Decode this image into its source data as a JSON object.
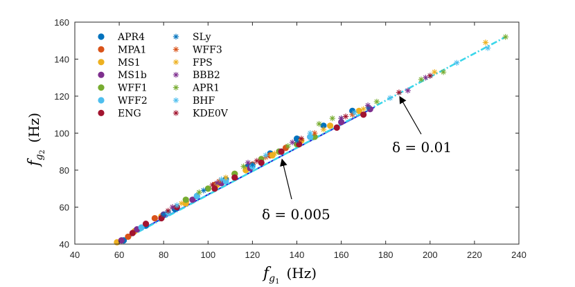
{
  "chart_data": {
    "type": "scatter",
    "title": "",
    "xlabel": {
      "base": "f",
      "sub1": "g",
      "sub2": "1",
      "unit": "(Hz)"
    },
    "ylabel": {
      "base": "f",
      "sub1": "g",
      "sub2": "2",
      "unit": "(Hz)"
    },
    "xlim": [
      40,
      240
    ],
    "ylim": [
      40,
      160
    ],
    "xticks": [
      "40",
      "60",
      "80",
      "100",
      "120",
      "140",
      "160",
      "180",
      "200",
      "220",
      "240"
    ],
    "yticks": [
      "40",
      "60",
      "80",
      "100",
      "120",
      "140",
      "160"
    ],
    "grid": false,
    "legend_position": "top-left",
    "series": [
      {
        "name": "APR4",
        "marker": "dot",
        "color": "#0072BD",
        "x": [
          62,
          72,
          85,
          95,
          108,
          118,
          128,
          140,
          152,
          165
        ],
        "y": [
          42,
          50,
          59,
          66,
          75,
          82,
          89,
          97,
          104,
          112
        ]
      },
      {
        "name": "MPA1",
        "marker": "dot",
        "color": "#D95319",
        "x": [
          64,
          76,
          90,
          103,
          112,
          120,
          128,
          135
        ],
        "y": [
          44,
          54,
          63,
          72,
          78,
          83,
          88,
          92
        ]
      },
      {
        "name": "MS1",
        "marker": "dot",
        "color": "#EDB120",
        "x": [
          59,
          67,
          79,
          90,
          104,
          117,
          129,
          142,
          155,
          168
        ],
        "y": [
          41,
          47,
          55,
          62,
          72,
          80,
          88,
          96,
          104,
          112
        ]
      },
      {
        "name": "MS1b",
        "marker": "dot",
        "color": "#7E2F8E",
        "x": [
          61,
          68,
          80,
          93,
          106,
          119,
          132,
          146,
          160,
          173
        ],
        "y": [
          42,
          48,
          56,
          64,
          73,
          81,
          90,
          98,
          106,
          113
        ]
      },
      {
        "name": "WFF1",
        "marker": "dot",
        "color": "#77AC30",
        "x": [
          90,
          100,
          112,
          124,
          132,
          140,
          148
        ],
        "y": [
          64,
          70,
          78,
          86,
          90,
          94,
          98
        ]
      },
      {
        "name": "WFF2",
        "marker": "dot",
        "color": "#4DBEEE",
        "x": [
          70,
          82,
          95,
          108,
          120,
          133,
          146
        ],
        "y": [
          49,
          57,
          66,
          74,
          82,
          90,
          98
        ]
      },
      {
        "name": "ENG",
        "marker": "dot",
        "color": "#A2142F",
        "x": [
          66,
          72,
          79,
          86,
          103,
          112,
          124,
          133,
          141,
          158,
          170
        ],
        "y": [
          46,
          51,
          54,
          60,
          70,
          76,
          84,
          90,
          94,
          103,
          110
        ]
      },
      {
        "name": "SLy",
        "marker": "star",
        "color": "#0072BD",
        "x": [
          80,
          98,
          120,
          140,
          160,
          172
        ],
        "y": [
          56,
          69,
          83,
          96,
          108,
          114
        ]
      },
      {
        "name": "WFF3",
        "marker": "star",
        "color": "#D95319",
        "x": [
          84,
          105,
          126,
          148,
          165
        ],
        "y": [
          60,
          74,
          87,
          100,
          110
        ]
      },
      {
        "name": "FPS",
        "marker": "star",
        "color": "#EDB120",
        "x": [
          88,
          108,
          130,
          152,
          170,
          202,
          225
        ],
        "y": [
          62,
          76,
          89,
          102,
          113,
          133,
          149
        ]
      },
      {
        "name": "BBB2",
        "marker": "star",
        "color": "#7E2F8E",
        "x": [
          84,
          104,
          118,
          138,
          160,
          172,
          190,
          198
        ],
        "y": [
          60,
          73,
          84,
          95,
          108,
          115,
          123,
          130
        ]
      },
      {
        "name": "APR1",
        "marker": "star",
        "color": "#77AC30",
        "x": [
          96,
          116,
          136,
          150,
          156,
          176,
          196,
          206,
          234
        ],
        "y": [
          68,
          82,
          93,
          105,
          108,
          117,
          129,
          133,
          152
        ]
      },
      {
        "name": "BHF",
        "marker": "star",
        "color": "#4DBEEE",
        "x": [
          86,
          106,
          126,
          146,
          166,
          182,
          200,
          212,
          226
        ],
        "y": [
          61,
          75,
          88,
          100,
          111,
          119,
          131,
          138,
          146
        ]
      },
      {
        "name": "KDE0V",
        "marker": "star",
        "color": "#A2142F",
        "x": [
          82,
          102,
          122,
          142,
          162,
          186,
          200
        ],
        "y": [
          58,
          72,
          85,
          97,
          109,
          122,
          131
        ]
      }
    ],
    "fit_lines": [
      {
        "name": "delta-0.005",
        "color": "#1f1fd6",
        "style": "solid",
        "x": [
          59,
          175
        ],
        "y": [
          41,
          114
        ]
      },
      {
        "name": "delta-0.01",
        "color": "#3ad6ea",
        "style": "dashdot",
        "x": [
          59,
          234
        ],
        "y": [
          40.5,
          152
        ]
      }
    ],
    "annotations": [
      {
        "name": "delta-0.005",
        "label": "δ = 0.005",
        "point": [
          133,
          87
        ]
      },
      {
        "name": "delta-0.01",
        "label": "δ = 0.01",
        "point": [
          186,
          122
        ]
      }
    ]
  }
}
